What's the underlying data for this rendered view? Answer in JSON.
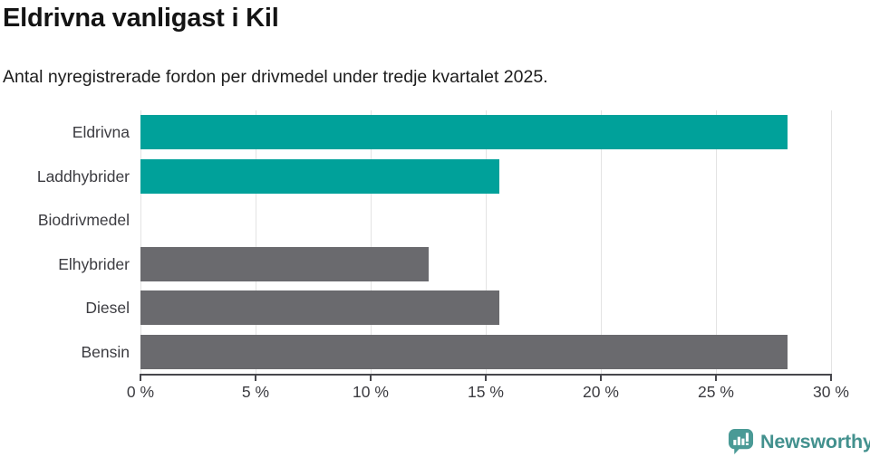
{
  "title": "Eldrivna vanligast i Kil",
  "subtitle": "Antal nyregistrerade fordon per drivmedel under tredje kvartalet 2025.",
  "colors": {
    "accent": "#00a19a",
    "muted": "#6a6a6e",
    "grid": "#e3e3e3",
    "axis": "#47474c",
    "tick_text": "#3c3c41",
    "title_text": "#141414",
    "logo_teal": "#43918e",
    "logo_icon_fill": "#4a9a96"
  },
  "chart_data": {
    "type": "bar",
    "orientation": "horizontal",
    "title": "Eldrivna vanligast i Kil",
    "subtitle": "Antal nyregistrerade fordon per drivmedel under tredje kvartalet 2025.",
    "categories": [
      "Eldrivna",
      "Laddhybrider",
      "Biodrivmedel",
      "Elhybrider",
      "Diesel",
      "Bensin"
    ],
    "values": [
      28.1,
      15.6,
      0,
      12.5,
      15.6,
      28.1
    ],
    "bar_colors": [
      "accent",
      "accent",
      "accent",
      "muted",
      "muted",
      "muted"
    ],
    "xlim": [
      0,
      30
    ],
    "x_ticks": [
      0,
      5,
      10,
      15,
      20,
      25,
      30
    ],
    "x_tick_labels": [
      "0 %",
      "5 %",
      "10 %",
      "15 %",
      "20 %",
      "25 %",
      "30 %"
    ],
    "grid": true,
    "legend": "none",
    "unit": "%"
  },
  "footer": {
    "brand": "Newsworthy"
  }
}
